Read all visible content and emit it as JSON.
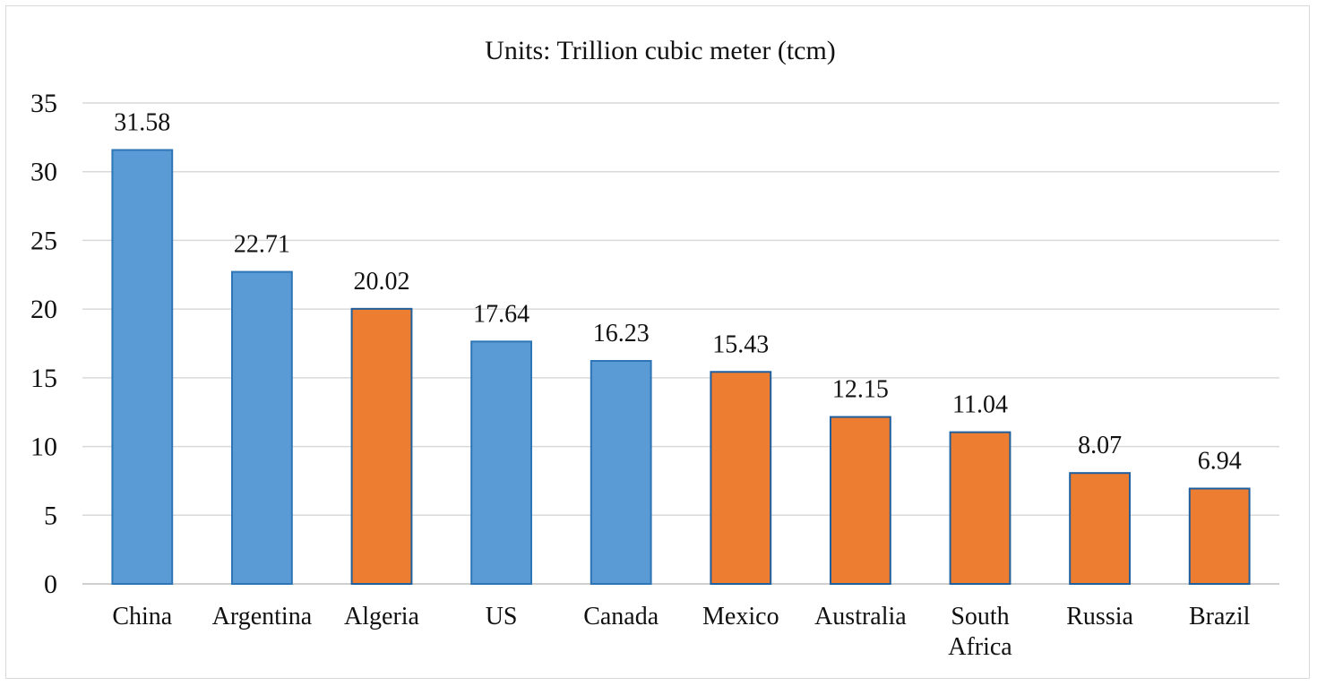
{
  "chart_data": {
    "type": "bar",
    "title": "Units: Trillion cubic meter (tcm)",
    "xlabel": "",
    "ylabel": "",
    "ylim": [
      0,
      35
    ],
    "yticks": [
      "0",
      "5",
      "10",
      "15",
      "20",
      "25",
      "30",
      "35"
    ],
    "grid": true,
    "legend": "none",
    "categories": [
      "China",
      "Argentina",
      "Algeria",
      "US",
      "Canada",
      "Mexico",
      "Australia",
      "South Africa",
      "Russia",
      "Brazil"
    ],
    "category_label_lines": [
      [
        "China"
      ],
      [
        "Argentina"
      ],
      [
        "Algeria"
      ],
      [
        "US"
      ],
      [
        "Canada"
      ],
      [
        "Mexico"
      ],
      [
        "Australia"
      ],
      [
        "South",
        "Africa"
      ],
      [
        "Russia"
      ],
      [
        "Brazil"
      ]
    ],
    "values": [
      31.58,
      22.71,
      20.02,
      17.64,
      16.23,
      15.43,
      12.15,
      11.04,
      8.07,
      6.94
    ],
    "value_labels": [
      "31.58",
      "22.71",
      "20.02",
      "17.64",
      "16.23",
      "15.43",
      "12.15",
      "11.04",
      "8.07",
      "6.94"
    ],
    "bar_colors": [
      "#5b9bd5",
      "#5b9bd5",
      "#ed7d31",
      "#5b9bd5",
      "#5b9bd5",
      "#ed7d31",
      "#ed7d31",
      "#ed7d31",
      "#ed7d31",
      "#ed7d31"
    ],
    "bar_border_colors": [
      "#2e75b6",
      "#2e75b6",
      "#1f5f9e",
      "#2e75b6",
      "#2e75b6",
      "#1f5f9e",
      "#1f5f9e",
      "#1f5f9e",
      "#1f5f9e",
      "#1f5f9e"
    ]
  }
}
